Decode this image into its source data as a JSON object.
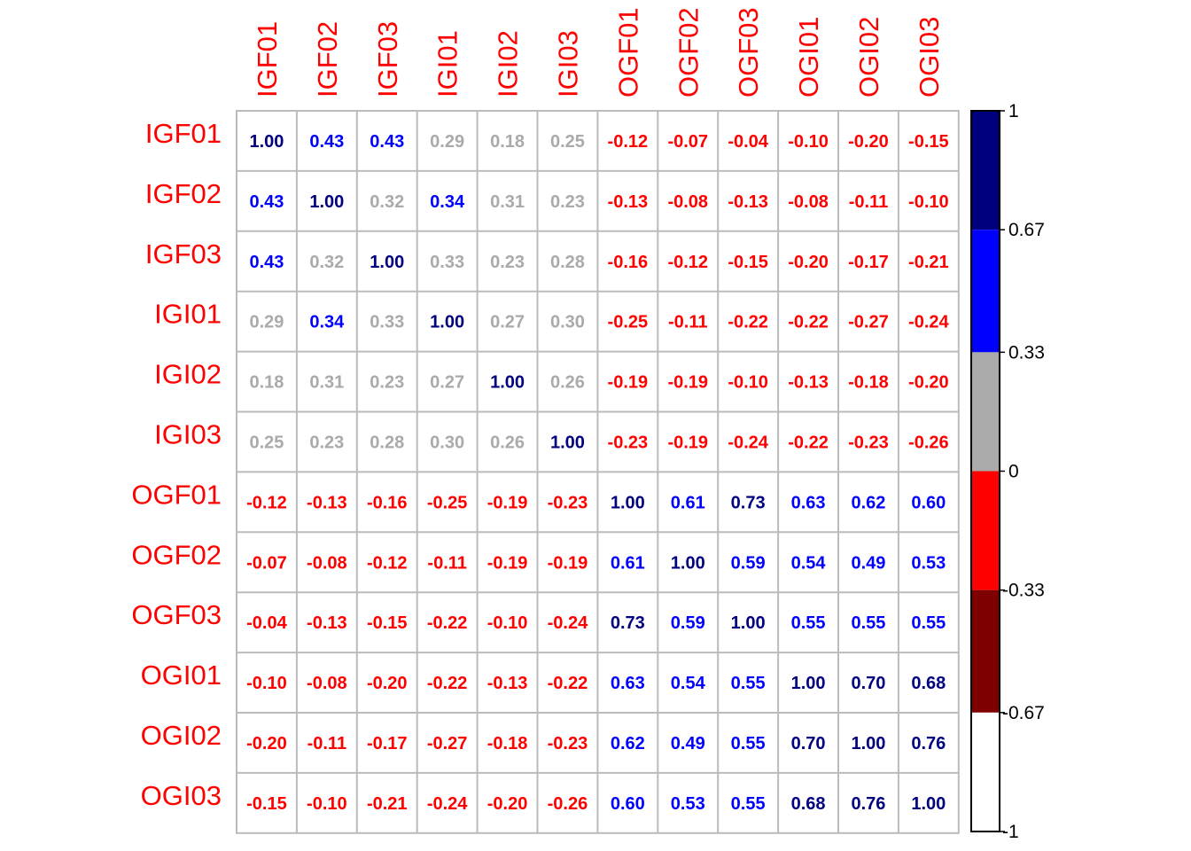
{
  "chart_data": {
    "type": "heatmap",
    "title": "",
    "xlabel": "",
    "ylabel": "",
    "variables": [
      "IGF01",
      "IGF02",
      "IGF03",
      "IGI01",
      "IGI02",
      "IGI03",
      "OGF01",
      "OGF02",
      "OGF03",
      "OGI01",
      "OGI02",
      "OGI03"
    ],
    "matrix": [
      [
        1.0,
        0.43,
        0.43,
        0.29,
        0.18,
        0.25,
        -0.12,
        -0.07,
        -0.04,
        -0.1,
        -0.2,
        -0.15
      ],
      [
        0.43,
        1.0,
        0.32,
        0.34,
        0.31,
        0.23,
        -0.13,
        -0.08,
        -0.13,
        -0.08,
        -0.11,
        -0.1
      ],
      [
        0.43,
        0.32,
        1.0,
        0.33,
        0.23,
        0.28,
        -0.16,
        -0.12,
        -0.15,
        -0.2,
        -0.17,
        -0.21
      ],
      [
        0.29,
        0.34,
        0.33,
        1.0,
        0.27,
        0.3,
        -0.25,
        -0.11,
        -0.22,
        -0.22,
        -0.27,
        -0.24
      ],
      [
        0.18,
        0.31,
        0.23,
        0.27,
        1.0,
        0.26,
        -0.19,
        -0.19,
        -0.1,
        -0.13,
        -0.18,
        -0.2
      ],
      [
        0.25,
        0.23,
        0.28,
        0.3,
        0.26,
        1.0,
        -0.23,
        -0.19,
        -0.24,
        -0.22,
        -0.23,
        -0.26
      ],
      [
        -0.12,
        -0.13,
        -0.16,
        -0.25,
        -0.19,
        -0.23,
        1.0,
        0.61,
        0.73,
        0.63,
        0.62,
        0.6
      ],
      [
        -0.07,
        -0.08,
        -0.12,
        -0.11,
        -0.19,
        -0.19,
        0.61,
        1.0,
        0.59,
        0.54,
        0.49,
        0.53
      ],
      [
        -0.04,
        -0.13,
        -0.15,
        -0.22,
        -0.1,
        -0.24,
        0.73,
        0.59,
        1.0,
        0.55,
        0.55,
        0.55
      ],
      [
        -0.1,
        -0.08,
        -0.2,
        -0.22,
        -0.13,
        -0.22,
        0.63,
        0.54,
        0.55,
        1.0,
        0.7,
        0.68
      ],
      [
        -0.2,
        -0.11,
        -0.17,
        -0.27,
        -0.18,
        -0.23,
        0.62,
        0.49,
        0.55,
        0.7,
        1.0,
        0.76
      ],
      [
        -0.15,
        -0.1,
        -0.21,
        -0.24,
        -0.2,
        -0.26,
        0.6,
        0.53,
        0.55,
        0.68,
        0.76,
        1.0
      ]
    ],
    "value_range": [
      -1,
      1
    ],
    "legend": {
      "placement": "right",
      "ticks": [
        "1",
        "0.67",
        "0.33",
        "0",
        "-0.33",
        "-0.67",
        "-1"
      ],
      "bands": [
        {
          "from": 0.67,
          "to": 1,
          "color": "#00007F"
        },
        {
          "from": 0.33,
          "to": 0.67,
          "color": "#0000FF"
        },
        {
          "from": 0,
          "to": 0.33,
          "color": "#AAAAAA"
        },
        {
          "from": -0.33,
          "to": 0,
          "color": "#FF0000"
        },
        {
          "from": -0.67,
          "to": -0.33,
          "color": "#7F0000"
        },
        {
          "from": -1,
          "to": -0.67,
          "color": "#FFFFFF"
        }
      ]
    },
    "label_color": "#FF0000",
    "grid_color": "#BBBBBB"
  }
}
